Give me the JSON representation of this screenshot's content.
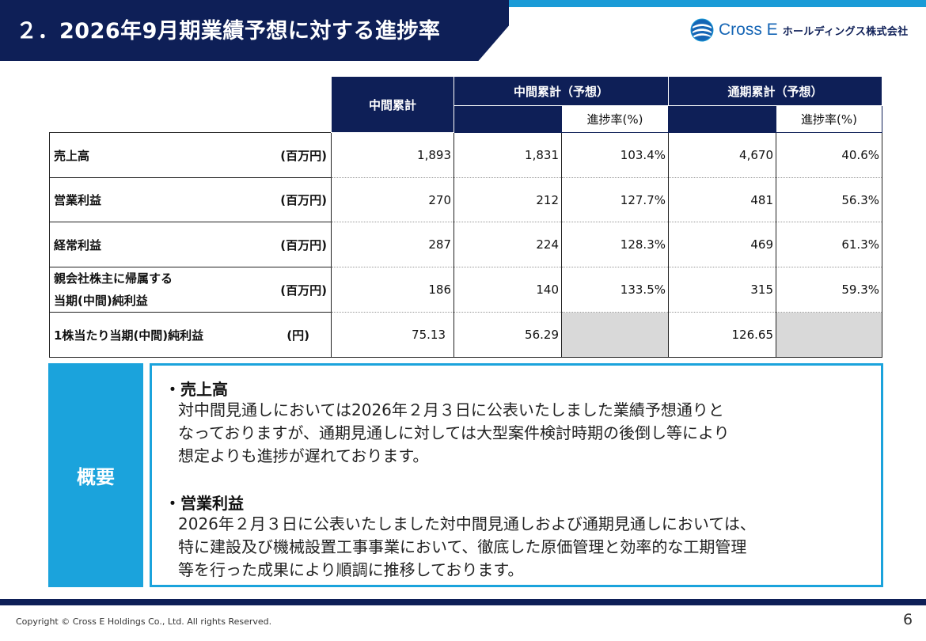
{
  "header": {
    "title": "２．2026年9月期業績予想に対する進捗率",
    "logo_brand": "Cross E",
    "logo_company": "ホールディングス株式会社"
  },
  "table": {
    "headers": {
      "interim_actual": "中間累計",
      "interim_forecast": "中間累計（予想）",
      "full_forecast": "通期累計（予想）",
      "progress_rate": "進捗率(%)"
    },
    "rows": [
      {
        "label": "売上高",
        "label2": "",
        "unit": "(百万円)",
        "interim_actual": "1,893",
        "interim_forecast": "1,831",
        "interim_progress": "103.4%",
        "full_forecast": "4,670",
        "full_progress": "40.6%"
      },
      {
        "label": "営業利益",
        "label2": "",
        "unit": "(百万円)",
        "interim_actual": "270",
        "interim_forecast": "212",
        "interim_progress": "127.7%",
        "full_forecast": "481",
        "full_progress": "56.3%"
      },
      {
        "label": "経常利益",
        "label2": "",
        "unit": "(百万円)",
        "interim_actual": "287",
        "interim_forecast": "224",
        "interim_progress": "128.3%",
        "full_forecast": "469",
        "full_progress": "61.3%"
      },
      {
        "label": "親会社株主に帰属する",
        "label2": "当期(中間)純利益",
        "unit": "(百万円)",
        "interim_actual": "186",
        "interim_forecast": "140",
        "interim_progress": "133.5%",
        "full_forecast": "315",
        "full_progress": "59.3%"
      },
      {
        "label": "1株当たり当期(中間)純利益",
        "label2": "",
        "unit": "(円)",
        "interim_actual": "75.13",
        "interim_forecast": "56.29",
        "interim_progress": "",
        "full_forecast": "126.65",
        "full_progress": ""
      }
    ]
  },
  "summary": {
    "label": "概要",
    "sections": [
      {
        "heading": "・売上高",
        "lines": [
          "対中間見通しにおいては2026年２月３日に公表いたしました業績予想通りと",
          "なっておりますが、通期見通しに対しては大型案件検討時期の後倒し等により",
          "想定よりも進捗が遅れております。"
        ]
      },
      {
        "heading": "・営業利益",
        "lines": [
          " 2026年２月３日に公表いたしました対中間見通しおよび通期見通しにおいては、",
          "特に建設及び機械設置工事事業において、徹底した原価管理と効率的な工期管理",
          "等を行った成果により順調に推移しております。"
        ]
      }
    ]
  },
  "footer": {
    "copyright": "Copyright © Cross E Holdings Co., Ltd. All rights Reserved.",
    "page_number": "6"
  },
  "colors": {
    "navy": "#0e1f57",
    "accent_blue": "#1ba3dc",
    "grey_cell": "#d9d9d9"
  }
}
